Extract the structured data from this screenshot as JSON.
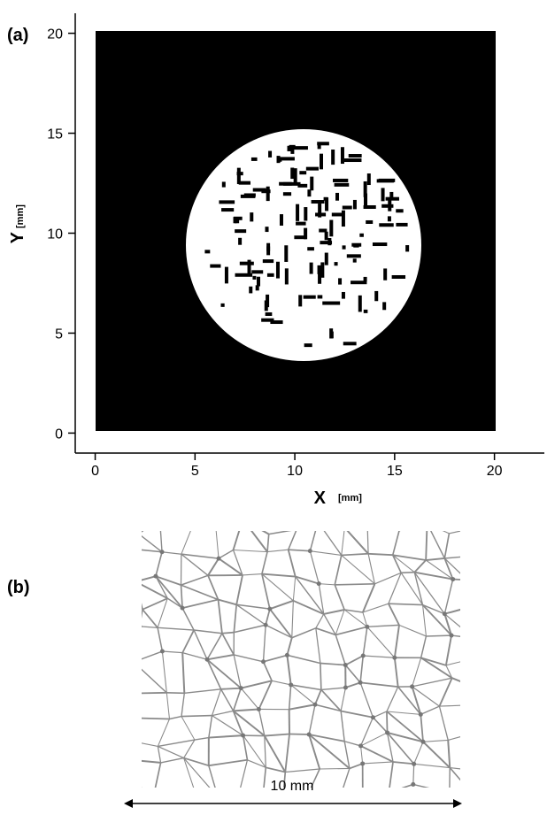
{
  "chart_data": {
    "type": "image",
    "panel_label": "(a)",
    "x_label": "X",
    "x_unit": "[mm]",
    "y_label": "Y",
    "y_unit": "[mm]",
    "xlim": [
      -1,
      22.5
    ],
    "ylim": [
      -1,
      21
    ],
    "xticks": [
      0,
      5,
      10,
      15,
      20
    ],
    "yticks": [
      0,
      5,
      10,
      15,
      20
    ]
  },
  "panel_b": {
    "label": "(b)",
    "scale_bar": "10 mm"
  }
}
